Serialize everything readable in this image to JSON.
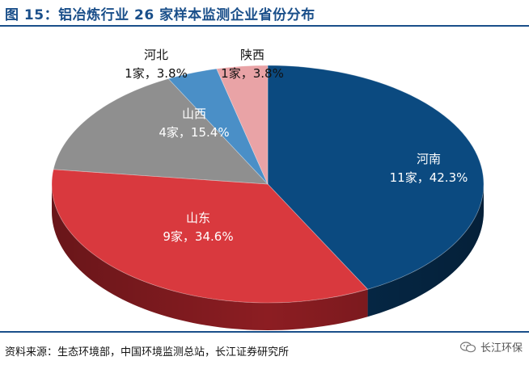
{
  "header": {
    "title": "图 15：铝冶炼行业 26 家样本监测企业省份分布"
  },
  "footer": {
    "source": "资料来源：生态环境部，中国环境监测总站，长江证券研究所",
    "watermark": "长江环保",
    "watermark_icon": "wechat-icon"
  },
  "chart_data": {
    "type": "pie",
    "title": "",
    "slices": [
      {
        "name": "河南",
        "count": 11,
        "label": "11家，42.3%",
        "percent": 42.3,
        "color": "#0b4a80",
        "side": "#062b4c",
        "text": "#ffffff"
      },
      {
        "name": "山东",
        "count": 9,
        "label": "9家，34.6%",
        "percent": 34.6,
        "color": "#d9393e",
        "side": "#8c1d22",
        "text": "#ffffff"
      },
      {
        "name": "山西",
        "count": 4,
        "label": "4家，15.4%",
        "percent": 15.4,
        "color": "#8f8f8f",
        "side": "#5c5c5c",
        "text": "#ffffff"
      },
      {
        "name": "河北",
        "count": 1,
        "label": "1家，3.8%",
        "percent": 3.8,
        "color": "#4a8fc7",
        "side": "#2e6591",
        "text": "#111111"
      },
      {
        "name": "陕西",
        "count": 1,
        "label": "1家，3.8%",
        "percent": 3.8,
        "color": "#e9a3a6",
        "side": "#b06e71",
        "text": "#111111"
      }
    ]
  }
}
